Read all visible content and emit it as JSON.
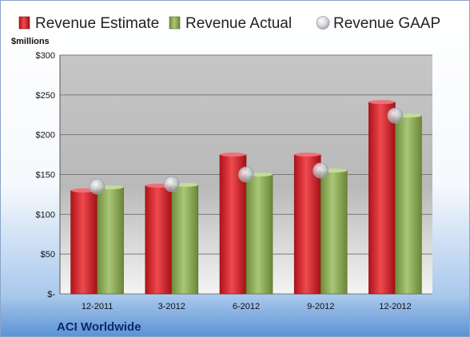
{
  "chart_data": {
    "type": "bar",
    "title": "",
    "ylabel": "$millions",
    "xlabel": "",
    "ylim": [
      0,
      300
    ],
    "yticks": [
      0,
      50,
      100,
      150,
      200,
      250,
      300
    ],
    "ytick_labels": [
      "$-",
      "$50",
      "$100",
      "$150",
      "$200",
      "$250",
      "$300"
    ],
    "categories": [
      "12-2011",
      "3-2012",
      "6-2012",
      "9-2012",
      "12-2012"
    ],
    "series": [
      {
        "name": "Revenue Estimate",
        "type": "bar",
        "color": "#cc1f26",
        "values": [
          130,
          136,
          175,
          175,
          241
        ]
      },
      {
        "name": "Revenue Actual",
        "type": "bar",
        "color": "#8cab52",
        "values": [
          134,
          137,
          150,
          155,
          224
        ]
      },
      {
        "name": "Revenue GAAP",
        "type": "marker",
        "color": "#b8bcc4",
        "values": [
          135,
          138,
          150,
          155,
          224
        ]
      }
    ],
    "legend_position": "top",
    "grid": true,
    "footer_label": "ACI Worldwide"
  }
}
